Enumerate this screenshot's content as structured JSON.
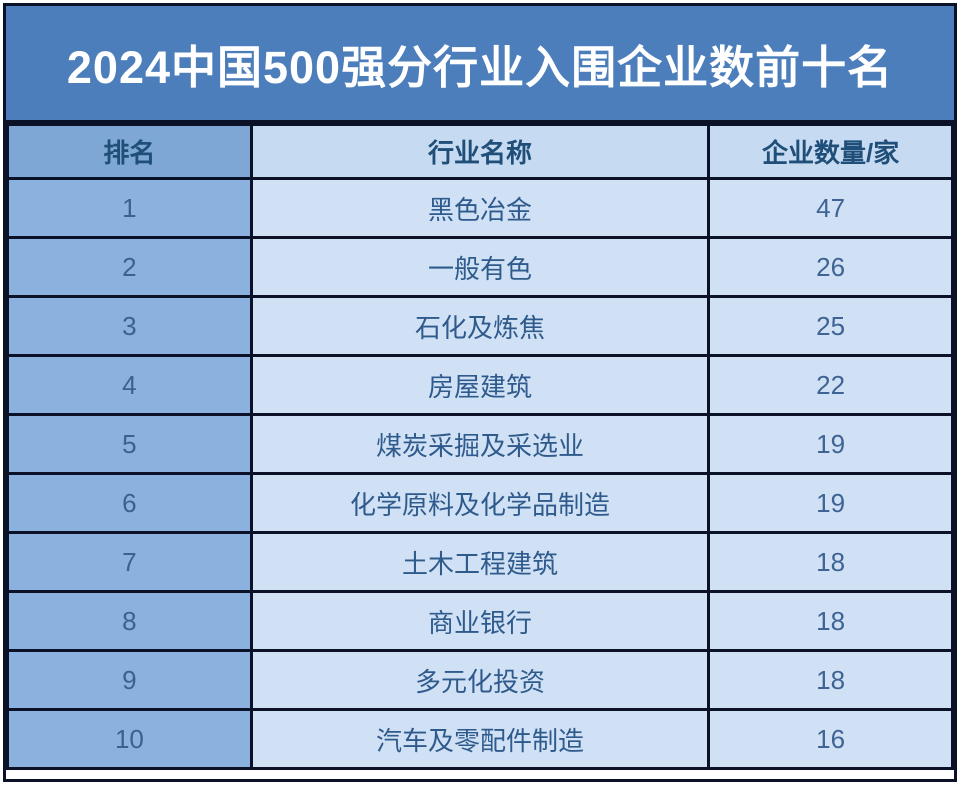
{
  "title": "2024中国500强分行业入围企业数前十名",
  "colors": {
    "title_bg": "#4c7ebb",
    "title_text": "#ffffff",
    "border": "#0b1126",
    "rank_header_bg": "#7ea7d6",
    "rank_cell_bg": "#8bb1de",
    "header_bg": "#c6daf1",
    "cell_bg": "#d0e1f5",
    "header_text": "#1f4e79",
    "industry_text": "#2f5a8c",
    "number_text": "#3e6394",
    "page_bg": "#ffffff"
  },
  "chart_data": {
    "type": "table",
    "title": "2024中国500强分行业入围企业数前十名",
    "columns": [
      "排名",
      "行业名称",
      "企业数量/家"
    ],
    "rows": [
      {
        "rank": "1",
        "industry": "黑色冶金",
        "count": "47"
      },
      {
        "rank": "2",
        "industry": "一般有色",
        "count": "26"
      },
      {
        "rank": "3",
        "industry": "石化及炼焦",
        "count": "25"
      },
      {
        "rank": "4",
        "industry": "房屋建筑",
        "count": "22"
      },
      {
        "rank": "5",
        "industry": "煤炭采掘及采选业",
        "count": "19"
      },
      {
        "rank": "6",
        "industry": "化学原料及化学品制造",
        "count": "19"
      },
      {
        "rank": "7",
        "industry": "土木工程建筑",
        "count": "18"
      },
      {
        "rank": "8",
        "industry": "商业银行",
        "count": "18"
      },
      {
        "rank": "9",
        "industry": "多元化投资",
        "count": "18"
      },
      {
        "rank": "10",
        "industry": "汽车及零配件制造",
        "count": "16"
      }
    ]
  }
}
